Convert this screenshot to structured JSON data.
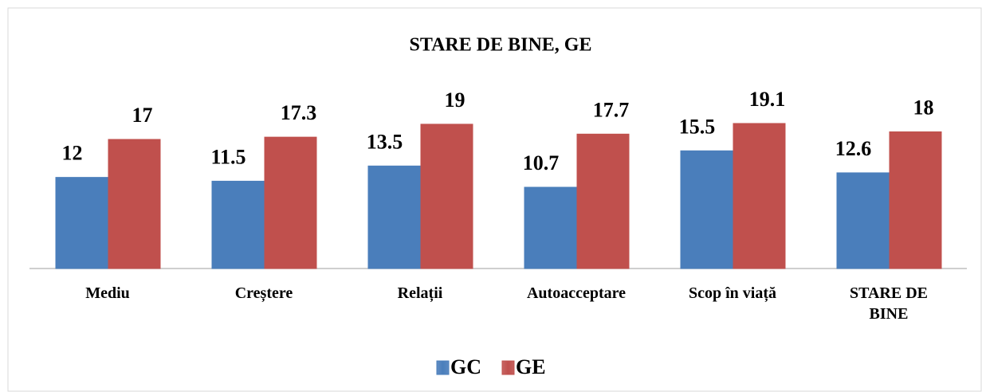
{
  "chart_data": {
    "type": "bar",
    "title": "STARE DE BINE, GE",
    "categories": [
      "Mediu",
      "Creștere",
      "Relații",
      "Autoacceptare",
      "Scop în viață",
      "STARE DE BINE"
    ],
    "series": [
      {
        "name": "GC",
        "color": "#4a7ebb",
        "values": [
          12,
          11.5,
          13.5,
          10.7,
          15.5,
          12.6
        ]
      },
      {
        "name": "GE",
        "color": "#c0504d",
        "values": [
          17,
          17.3,
          19,
          17.7,
          19.1,
          18
        ]
      }
    ],
    "ylim": [
      0,
      20
    ],
    "grid": false,
    "legend": "bottom"
  }
}
